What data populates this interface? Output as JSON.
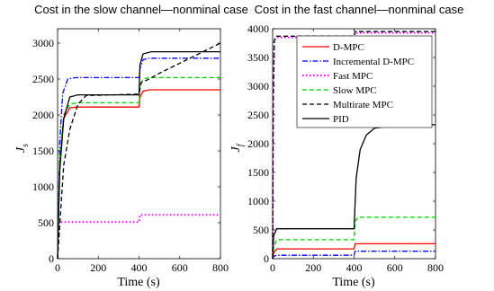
{
  "chart_data": [
    {
      "type": "line",
      "title": "Cost in the slow channel—nonminal case",
      "xlabel": "Time (s)",
      "ylabel": "J",
      "ylabel_subscript": "s",
      "xlim": [
        0,
        800
      ],
      "ylim": [
        0,
        3200
      ],
      "xticks": [
        "0",
        "200",
        "400",
        "600",
        "800"
      ],
      "yticks": [
        "0",
        "500",
        "1000",
        "1500",
        "2000",
        "2500",
        "3000"
      ],
      "series": [
        {
          "name": "D-MPC",
          "color": "#ff0000",
          "dash": "solid",
          "x": [
            0,
            10,
            30,
            60,
            100,
            400,
            405,
            420,
            450,
            800
          ],
          "y": [
            0,
            1300,
            1950,
            2100,
            2110,
            2110,
            2250,
            2330,
            2350,
            2350
          ]
        },
        {
          "name": "Incremental D-MPC",
          "color": "#0000ff",
          "dash": "dashdot",
          "x": [
            0,
            10,
            25,
            50,
            90,
            400,
            405,
            420,
            450,
            800
          ],
          "y": [
            0,
            1600,
            2300,
            2500,
            2520,
            2520,
            2650,
            2770,
            2790,
            2790
          ]
        },
        {
          "name": "Fast MPC",
          "color": "#ff00ff",
          "dash": "dotted",
          "x": [
            0,
            5,
            400,
            405,
            800
          ],
          "y": [
            500,
            510,
            510,
            610,
            610
          ]
        },
        {
          "name": "Slow MPC",
          "color": "#00cc00",
          "dash": "dashed",
          "x": [
            0,
            10,
            30,
            60,
            100,
            400,
            405,
            420,
            450,
            800
          ],
          "y": [
            0,
            1400,
            2000,
            2150,
            2170,
            2170,
            2400,
            2500,
            2520,
            2520
          ]
        },
        {
          "name": "Multirate MPC",
          "color": "#000000",
          "dash": "dashed",
          "x": [
            0,
            30,
            60,
            100,
            140,
            400,
            410,
            450,
            500,
            600,
            700,
            800
          ],
          "y": [
            0,
            1300,
            1800,
            2150,
            2270,
            2290,
            2450,
            2500,
            2580,
            2720,
            2860,
            3000
          ]
        },
        {
          "name": "PID",
          "color": "#000000",
          "dash": "solid",
          "x": [
            0,
            10,
            30,
            60,
            100,
            400,
            405,
            420,
            460,
            800
          ],
          "y": [
            0,
            1200,
            1950,
            2250,
            2280,
            2280,
            2700,
            2850,
            2880,
            2880
          ]
        }
      ]
    },
    {
      "type": "line",
      "title": "Cost in the fast channel—nonminal case",
      "xlabel": "Time (s)",
      "ylabel": "J",
      "ylabel_subscript": "f",
      "xlim": [
        0,
        800
      ],
      "ylim": [
        0,
        4000
      ],
      "xticks": [
        "0",
        "200",
        "400",
        "600",
        "800"
      ],
      "yticks": [
        "0",
        "500",
        "1000",
        "1500",
        "2000",
        "2500",
        "3000",
        "3500",
        "4000"
      ],
      "legend_position": "top-right",
      "series": [
        {
          "name": "D-MPC",
          "color": "#ff0000",
          "dash": "solid",
          "x": [
            0,
            5,
            20,
            400,
            405,
            800
          ],
          "y": [
            0,
            100,
            170,
            170,
            260,
            260
          ]
        },
        {
          "name": "Incremental D-MPC",
          "color": "#0000ff",
          "dash": "dashdot",
          "x": [
            0,
            5,
            20,
            400,
            405,
            800
          ],
          "y": [
            0,
            40,
            60,
            60,
            130,
            130
          ]
        },
        {
          "name": "Fast MPC",
          "color": "#ff00ff",
          "dash": "dotted",
          "x": [
            0,
            3,
            8,
            20,
            400,
            405,
            800
          ],
          "y": [
            0,
            3000,
            3800,
            3850,
            3850,
            3930,
            3930
          ]
        },
        {
          "name": "Slow MPC",
          "color": "#00cc00",
          "dash": "dashed",
          "x": [
            0,
            5,
            20,
            400,
            405,
            420,
            800
          ],
          "y": [
            0,
            200,
            330,
            330,
            650,
            720,
            720
          ]
        },
        {
          "name": "Multirate MPC",
          "color": "#000000",
          "dash": "dashed",
          "x": [
            0,
            3,
            8,
            20,
            400,
            405,
            800
          ],
          "y": [
            0,
            2800,
            3800,
            3870,
            3870,
            3950,
            3950
          ]
        },
        {
          "name": "PID",
          "color": "#000000",
          "dash": "solid",
          "x": [
            0,
            5,
            20,
            400,
            410,
            430,
            460,
            500,
            600,
            800
          ],
          "y": [
            0,
            400,
            520,
            520,
            1400,
            1900,
            2150,
            2270,
            2320,
            2330
          ]
        }
      ]
    }
  ]
}
